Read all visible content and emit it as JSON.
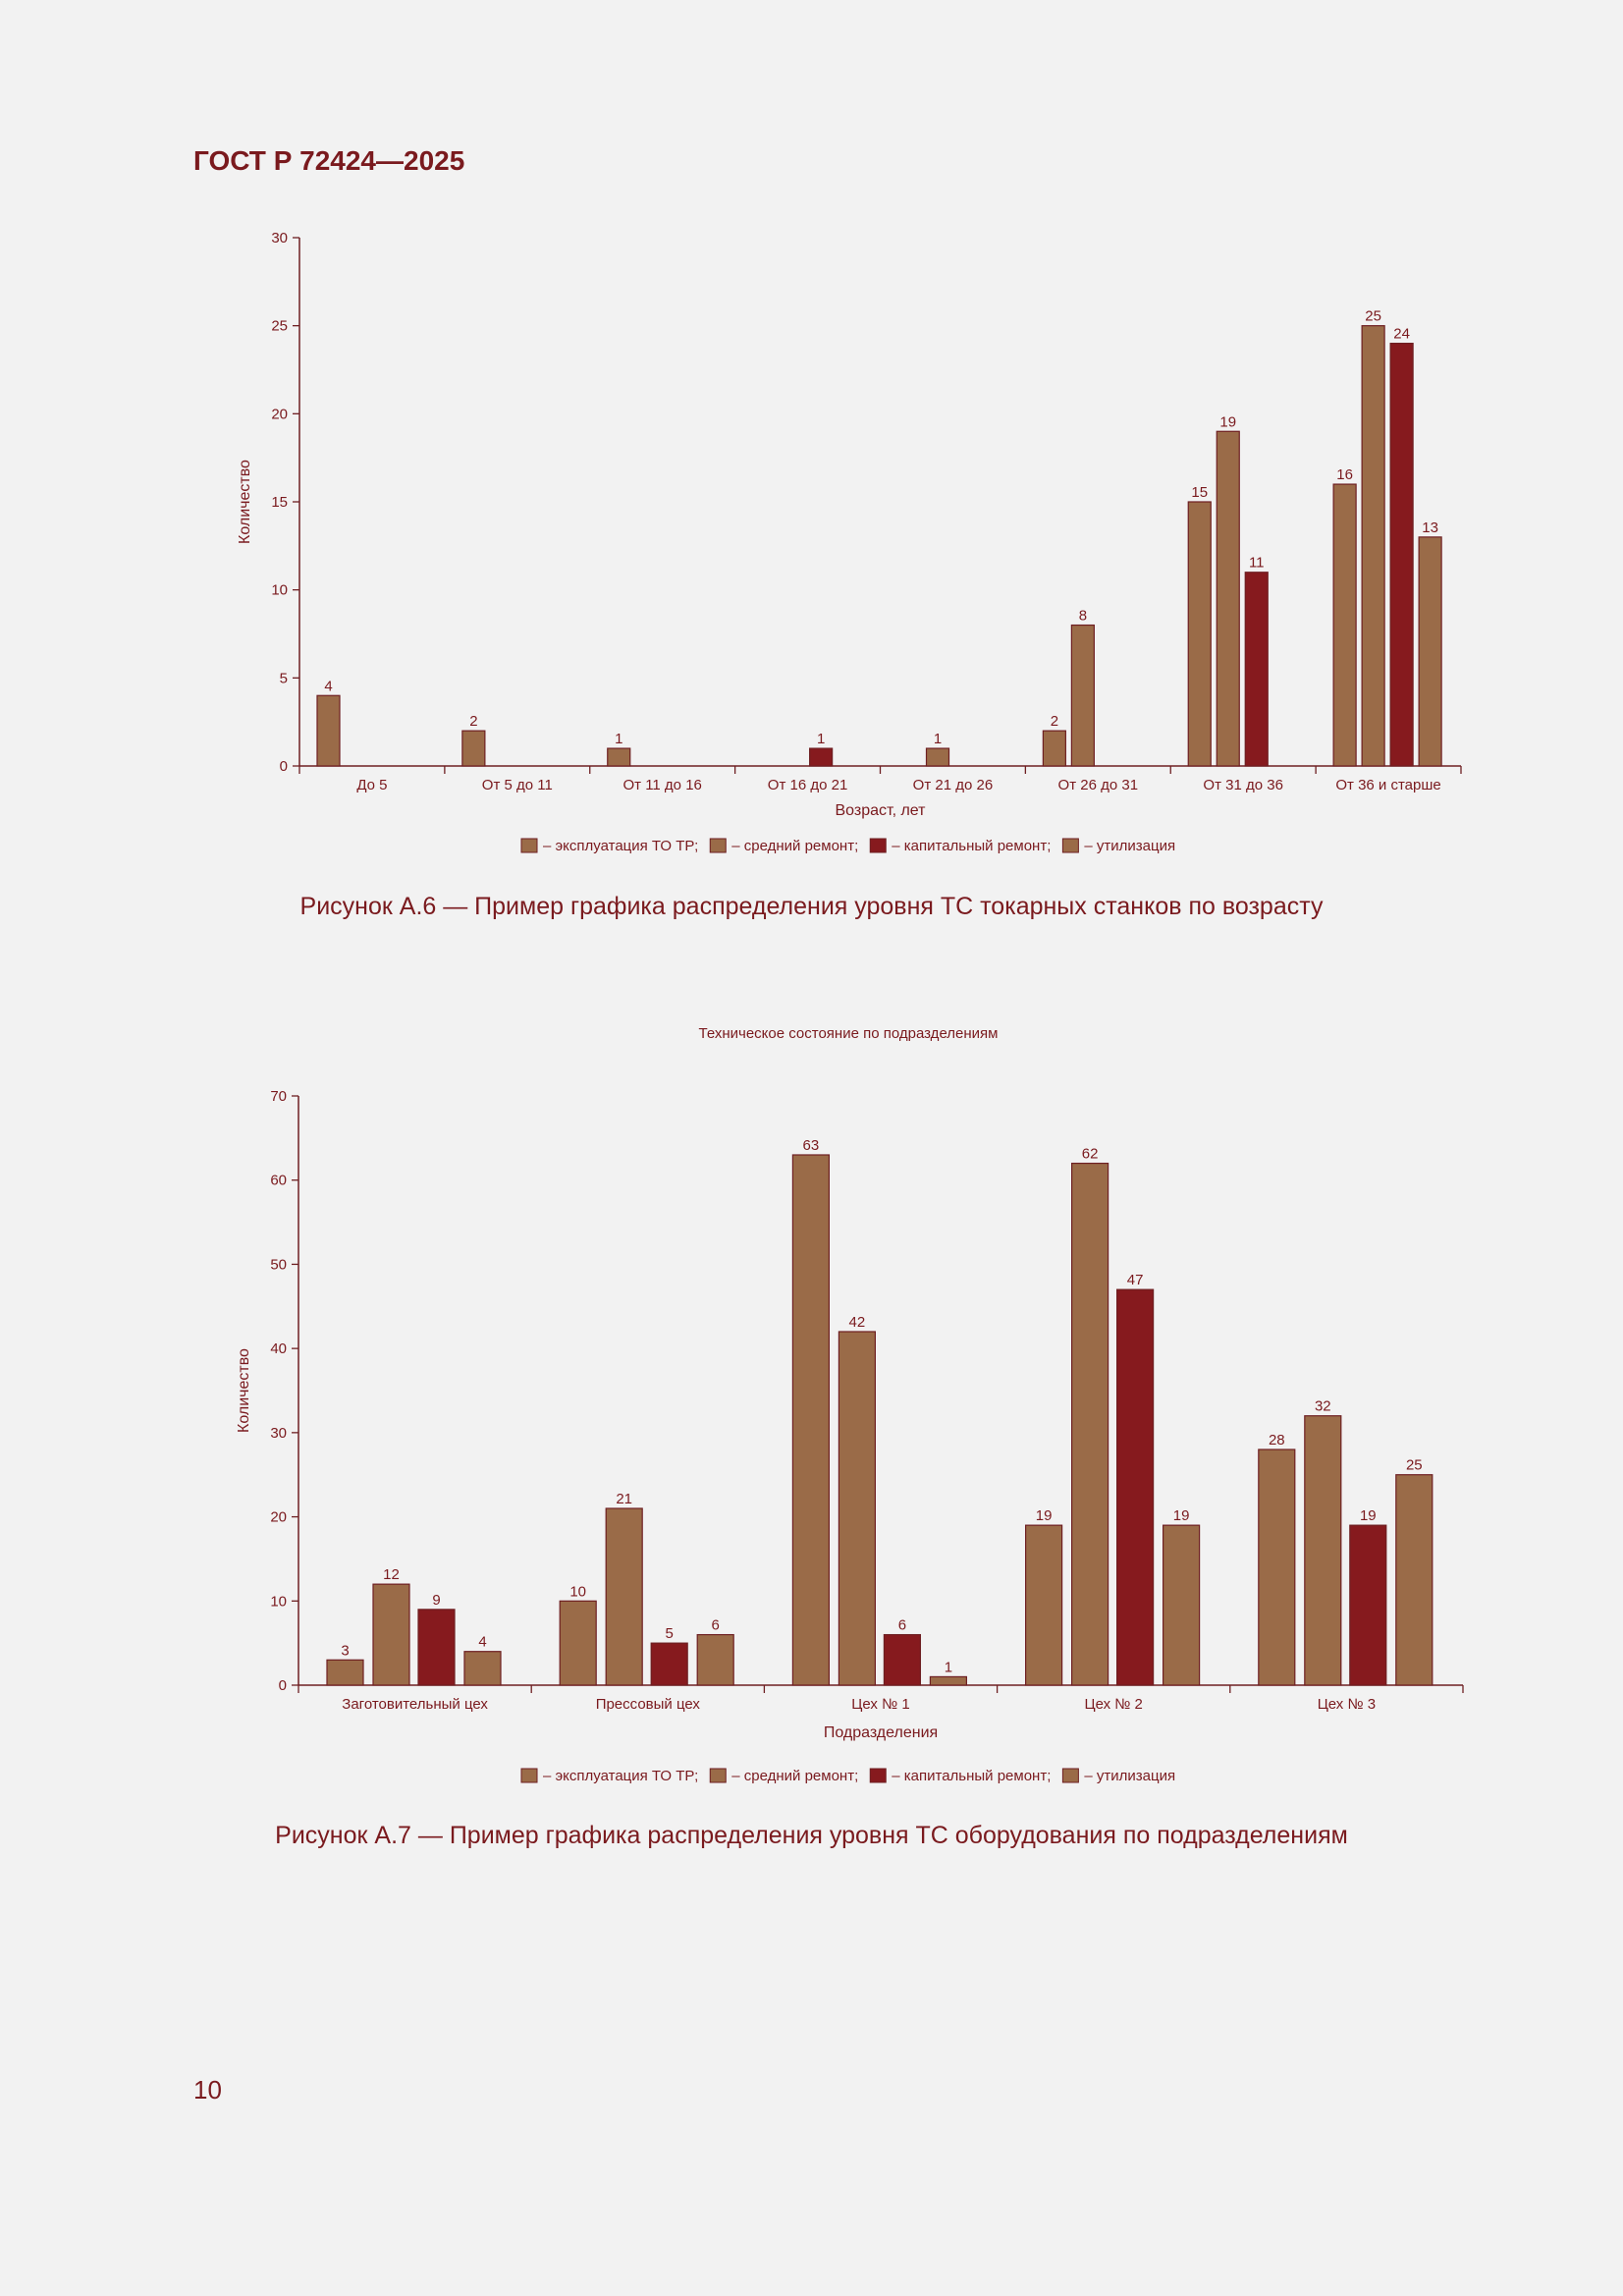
{
  "header": {
    "doc_id": "ГОСТ Р 72424—2025"
  },
  "page_number": "10",
  "colors": {
    "light_brown": "#9a6b48",
    "dark_red": "#861a1e",
    "outline": "#6e1f22",
    "text": "#7a1a1e"
  },
  "legend_items": [
    {
      "label": "– эксплуатация ТО ТР;",
      "color": "#9a6b48"
    },
    {
      "label": "– средний ремонт;",
      "color": "#9a6b48"
    },
    {
      "label": "– капитальный ремонт;",
      "color": "#861a1e"
    },
    {
      "label": "– утилизация",
      "color": "#9a6b48"
    }
  ],
  "figure1": {
    "caption": "Рисунок А.6 — Пример графика распределения уровня ТС токарных станков по возрасту"
  },
  "figure2": {
    "caption": "Рисунок А.7 — Пример графика распределения уровня ТС оборудования по подразделениям"
  },
  "chart_data": [
    {
      "type": "bar",
      "title": "",
      "xlabel": "Возраст, лет",
      "ylabel": "Количество",
      "ylim": [
        0,
        30
      ],
      "yticks": [
        0,
        5,
        10,
        15,
        20,
        25,
        30
      ],
      "categories": [
        "До 5",
        "От 5 до 11",
        "От 11 до 16",
        "От 16 до 21",
        "От 21 до 26",
        "От 26 до 31",
        "От 31 до 36",
        "От 36 и старше"
      ],
      "series": [
        {
          "name": "– эксплуатация ТО ТР;",
          "color": "#9a6b48",
          "values": [
            4,
            2,
            1,
            null,
            null,
            2,
            15,
            16
          ]
        },
        {
          "name": "– средний ремонт;",
          "color": "#9a6b48",
          "values": [
            null,
            null,
            null,
            null,
            1,
            8,
            19,
            25
          ]
        },
        {
          "name": "– капитальный ремонт;",
          "color": "#861a1e",
          "values": [
            null,
            null,
            null,
            1,
            null,
            null,
            11,
            24
          ]
        },
        {
          "name": "– утилизация",
          "color": "#9a6b48",
          "values": [
            null,
            null,
            null,
            null,
            null,
            null,
            null,
            13
          ]
        }
      ],
      "legend": "bottom",
      "grid": false
    },
    {
      "type": "bar",
      "title": "Техническое состояние по подразделениям",
      "xlabel": "Подразделения",
      "ylabel": "Количество",
      "ylim": [
        0,
        70
      ],
      "yticks": [
        0,
        10,
        20,
        30,
        40,
        50,
        60,
        70
      ],
      "categories": [
        "Заготовительный цех",
        "Прессовый цех",
        "Цех № 1",
        "Цех № 2",
        "Цех № 3"
      ],
      "series": [
        {
          "name": "– эксплуатация ТО ТР;",
          "color": "#9a6b48",
          "values": [
            3,
            10,
            63,
            19,
            28
          ]
        },
        {
          "name": "– средний ремонт;",
          "color": "#9a6b48",
          "values": [
            12,
            21,
            42,
            62,
            32
          ]
        },
        {
          "name": "– капитальный ремонт;",
          "color": "#861a1e",
          "values": [
            9,
            5,
            6,
            47,
            19
          ]
        },
        {
          "name": "– утилизация",
          "color": "#9a6b48",
          "values": [
            4,
            6,
            1,
            19,
            25
          ]
        }
      ],
      "legend": "bottom",
      "grid": false
    }
  ]
}
